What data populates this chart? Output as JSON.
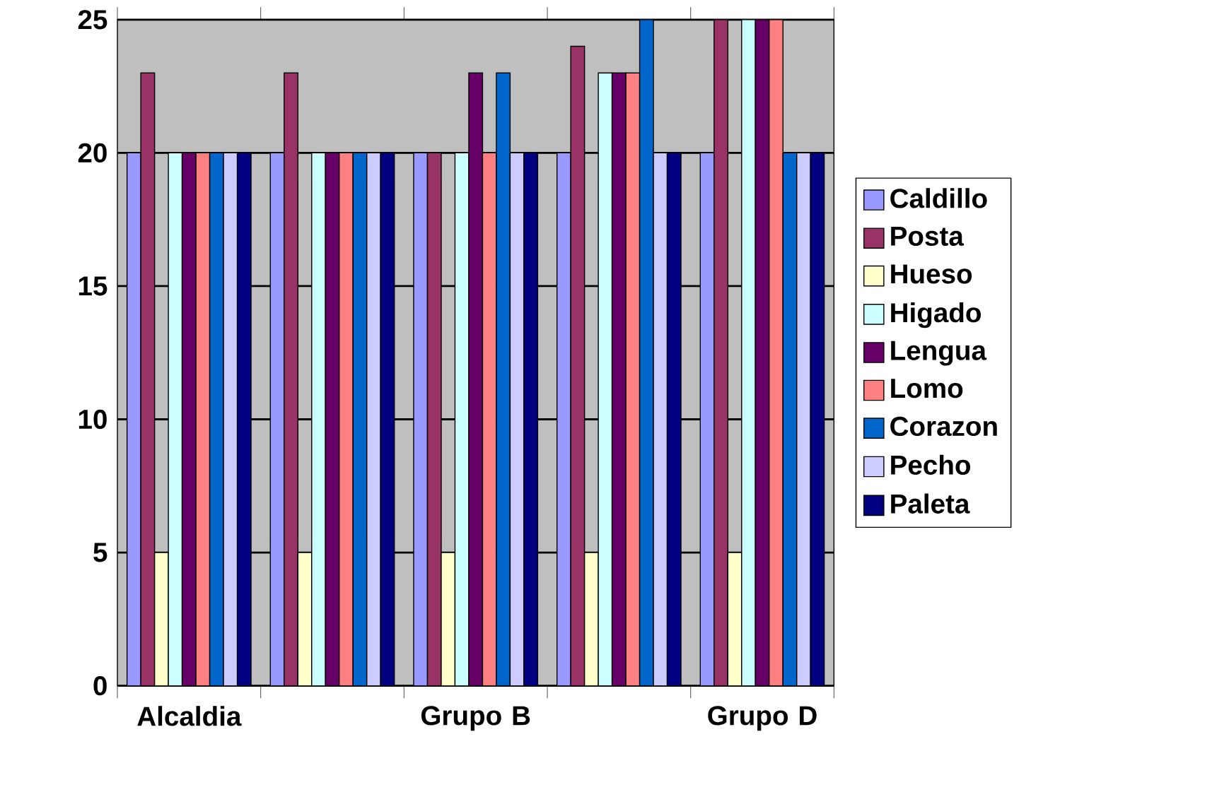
{
  "chart_data": {
    "type": "bar",
    "categories": [
      "Alcaldia",
      null,
      "Grupo B",
      null,
      "Grupo D"
    ],
    "series": [
      {
        "name": "Caldillo",
        "color": "#9999ff",
        "values": [
          20,
          20,
          20,
          20,
          20
        ]
      },
      {
        "name": "Posta",
        "color": "#993366",
        "values": [
          23,
          23,
          20,
          24,
          25
        ]
      },
      {
        "name": "Hueso",
        "color": "#ffffcc",
        "values": [
          5,
          5,
          5,
          5,
          5
        ]
      },
      {
        "name": "Higado",
        "color": "#ccffff",
        "values": [
          20,
          20,
          20,
          23,
          25
        ]
      },
      {
        "name": "Lengua",
        "color": "#660066",
        "values": [
          20,
          20,
          23,
          23,
          25
        ]
      },
      {
        "name": "Lomo",
        "color": "#ff8080",
        "values": [
          20,
          20,
          20,
          23,
          25
        ]
      },
      {
        "name": "Corazon",
        "color": "#0066cc",
        "values": [
          20,
          20,
          23,
          25,
          20
        ]
      },
      {
        "name": "Pecho",
        "color": "#ccccff",
        "values": [
          20,
          20,
          20,
          20,
          20
        ]
      },
      {
        "name": "Paleta",
        "color": "#000080",
        "values": [
          20,
          20,
          20,
          20,
          20
        ]
      }
    ],
    "ylim": [
      0,
      25
    ],
    "yticks": [
      0,
      5,
      10,
      15,
      20,
      25
    ],
    "grid": "y",
    "legend": "right"
  }
}
